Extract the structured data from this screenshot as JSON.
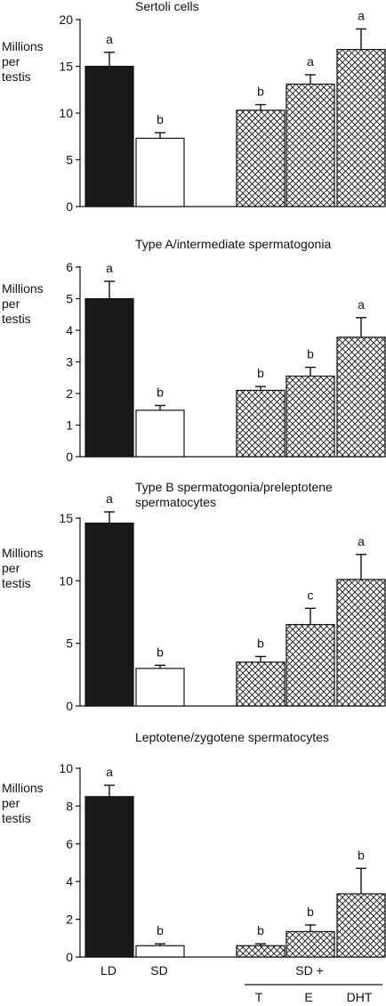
{
  "colors": {
    "LD": "#1a1a1a",
    "SD": "#ffffff",
    "treated_pattern": "crosshatch",
    "stroke": "#111111"
  },
  "ylabel_lines": [
    "Millions",
    "per",
    "testis"
  ],
  "x_labels": {
    "LD": "LD",
    "SD": "SD",
    "group": "SD +",
    "treatments": [
      "T",
      "E",
      "DHT"
    ]
  },
  "chart_data": [
    {
      "type": "bar",
      "title": "Sertoli cells",
      "ylabel": "Millions per testis",
      "ylim": [
        0,
        20
      ],
      "yticks": [
        0,
        5,
        10,
        15,
        20
      ],
      "categories": [
        "LD",
        "SD",
        "T",
        "E",
        "DHT"
      ],
      "values": [
        15.0,
        7.3,
        10.3,
        13.1,
        16.8
      ],
      "errors": [
        1.5,
        0.6,
        0.6,
        1.0,
        2.2
      ],
      "letters": [
        "a",
        "b",
        "b",
        "a",
        "a"
      ]
    },
    {
      "type": "bar",
      "title": "Type A/intermediate spermatogonia",
      "ylabel": "Millions per testis",
      "ylim": [
        0,
        6
      ],
      "yticks": [
        0,
        1,
        2,
        3,
        4,
        5,
        6
      ],
      "categories": [
        "LD",
        "SD",
        "T",
        "E",
        "DHT"
      ],
      "values": [
        5.0,
        1.47,
        2.1,
        2.55,
        3.78
      ],
      "errors": [
        0.55,
        0.15,
        0.12,
        0.28,
        0.62
      ],
      "letters": [
        "a",
        "b",
        "b",
        "b",
        "a"
      ]
    },
    {
      "type": "bar",
      "title": "Type B spermatogonia/preleptotene\nspermatocytes",
      "ylabel": "Millions per testis",
      "ylim": [
        0,
        15
      ],
      "yticks": [
        0,
        5,
        10,
        15
      ],
      "categories": [
        "LD",
        "SD",
        "T",
        "E",
        "DHT"
      ],
      "values": [
        14.6,
        3.0,
        3.5,
        6.5,
        10.1
      ],
      "errors": [
        0.9,
        0.25,
        0.45,
        1.3,
        2.0
      ],
      "letters": [
        "a",
        "b",
        "b",
        "c",
        "a"
      ]
    },
    {
      "type": "bar",
      "title": "Leptotene/zygotene spermatocytes",
      "ylabel": "Millions per testis",
      "ylim": [
        0,
        10
      ],
      "yticks": [
        0,
        2,
        4,
        6,
        8,
        10
      ],
      "categories": [
        "LD",
        "SD",
        "T",
        "E",
        "DHT"
      ],
      "values": [
        8.5,
        0.6,
        0.6,
        1.35,
        3.35
      ],
      "errors": [
        0.6,
        0.1,
        0.1,
        0.35,
        1.35
      ],
      "letters": [
        "a",
        "b",
        "b",
        "b",
        "b"
      ]
    }
  ]
}
